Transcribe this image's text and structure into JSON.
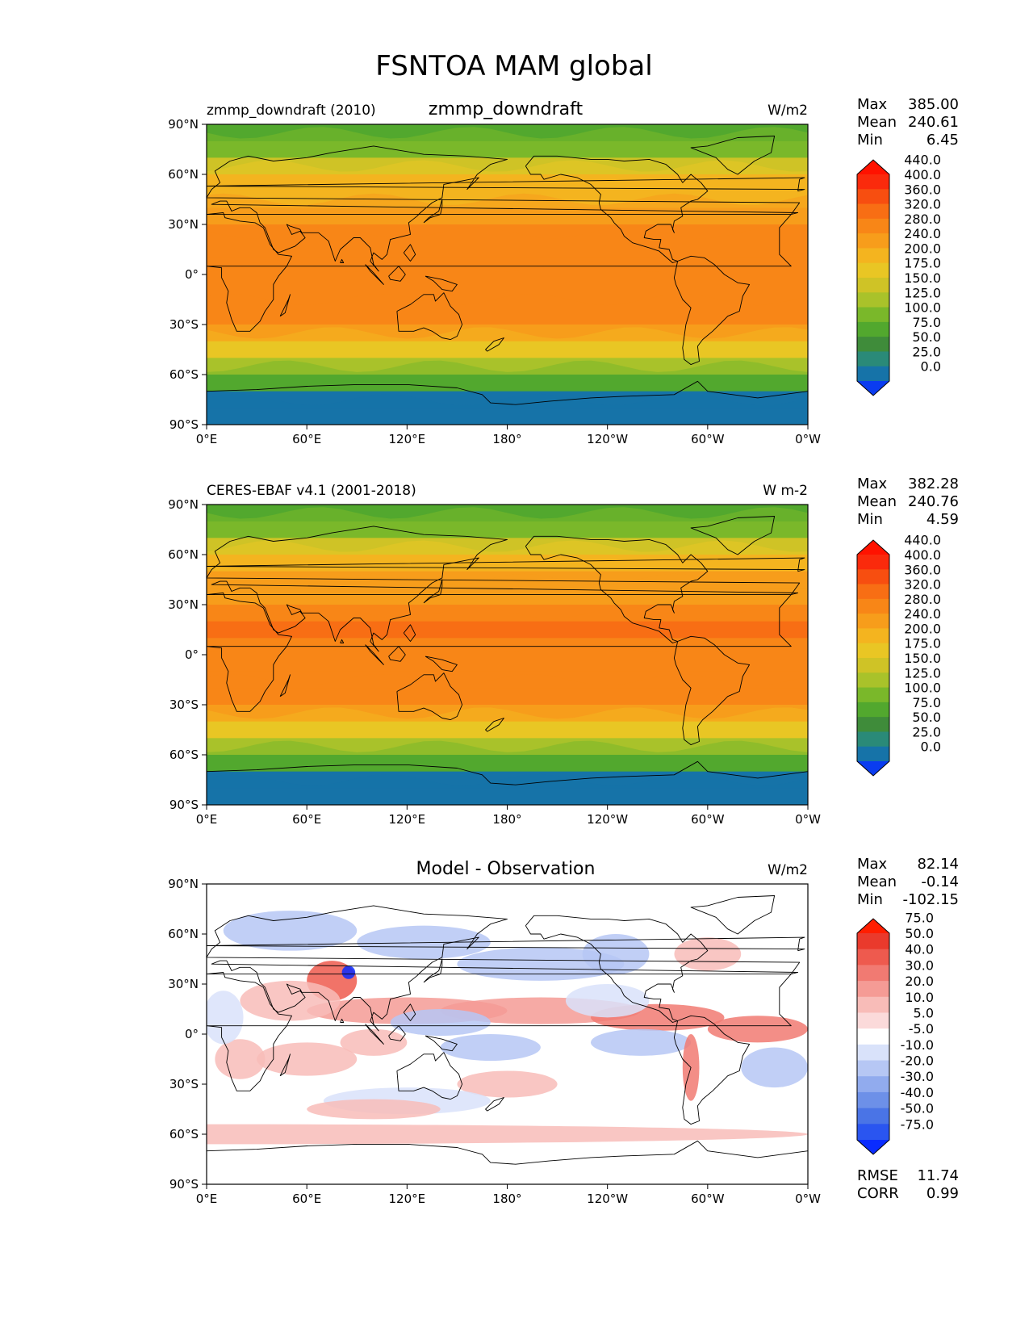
{
  "figure_title": "FSNTOA MAM global",
  "chart_data": [
    {
      "type": "heatmap",
      "left_title": "zmmp_downdraft (2010)",
      "center_title": "zmmp_downdraft",
      "units": "W/m2",
      "stats": {
        "max": "385.00",
        "mean": "240.61",
        "min": "6.45"
      },
      "colorbar_levels": [
        "0.0",
        "25.0",
        "50.0",
        "75.0",
        "100.0",
        "125.0",
        "150.0",
        "175.0",
        "200.0",
        "240.0",
        "280.0",
        "320.0",
        "360.0",
        "400.0",
        "440.0"
      ],
      "colorbar_colors": [
        "#0a3cf0",
        "#1673a8",
        "#2a8a78",
        "#3f8c3a",
        "#52a82e",
        "#7ab82a",
        "#a9c22a",
        "#cfc326",
        "#e9c624",
        "#f4b41f",
        "#f79d1b",
        "#f88617",
        "#f86e14",
        "#f74e10",
        "#fa2a0c",
        "#ff1200"
      ],
      "xticks": [
        "0°E",
        "60°E",
        "120°E",
        "180°",
        "120°W",
        "60°W",
        "0°W"
      ],
      "yticks": [
        "90°N",
        "60°N",
        "30°N",
        "0°",
        "30°S",
        "60°S",
        "90°S"
      ],
      "xlim": [
        0,
        360
      ],
      "ylim": [
        -90,
        90
      ],
      "zonal_profile": [
        {
          "lat": 85,
          "value": 90
        },
        {
          "lat": 75,
          "value": 120
        },
        {
          "lat": 65,
          "value": 165
        },
        {
          "lat": 55,
          "value": 200
        },
        {
          "lat": 45,
          "value": 235
        },
        {
          "lat": 35,
          "value": 270
        },
        {
          "lat": 25,
          "value": 295
        },
        {
          "lat": 15,
          "value": 310
        },
        {
          "lat": 5,
          "value": 305
        },
        {
          "lat": -5,
          "value": 315
        },
        {
          "lat": -15,
          "value": 310
        },
        {
          "lat": -25,
          "value": 285
        },
        {
          "lat": -35,
          "value": 240
        },
        {
          "lat": -45,
          "value": 185
        },
        {
          "lat": -55,
          "value": 140
        },
        {
          "lat": -65,
          "value": 95
        },
        {
          "lat": -75,
          "value": 10
        },
        {
          "lat": -85,
          "value": 6
        }
      ]
    },
    {
      "type": "heatmap",
      "left_title": "CERES-EBAF v4.1 (2001-2018)",
      "center_title": "",
      "units": "W m-2",
      "stats": {
        "max": "382.28",
        "mean": "240.76",
        "min": "4.59"
      },
      "colorbar_levels": [
        "0.0",
        "25.0",
        "50.0",
        "75.0",
        "100.0",
        "125.0",
        "150.0",
        "175.0",
        "200.0",
        "240.0",
        "280.0",
        "320.0",
        "360.0",
        "400.0",
        "440.0"
      ],
      "colorbar_colors": [
        "#0a3cf0",
        "#1673a8",
        "#2a8a78",
        "#3f8c3a",
        "#52a82e",
        "#7ab82a",
        "#a9c22a",
        "#cfc326",
        "#e9c624",
        "#f4b41f",
        "#f79d1b",
        "#f88617",
        "#f86e14",
        "#f74e10",
        "#fa2a0c",
        "#ff1200"
      ],
      "xticks": [
        "0°E",
        "60°E",
        "120°E",
        "180°",
        "120°W",
        "60°W",
        "0°W"
      ],
      "yticks": [
        "90°N",
        "60°N",
        "30°N",
        "0°",
        "30°S",
        "60°S",
        "90°S"
      ],
      "xlim": [
        0,
        360
      ],
      "ylim": [
        -90,
        90
      ],
      "zonal_profile": [
        {
          "lat": 85,
          "value": 90
        },
        {
          "lat": 75,
          "value": 120
        },
        {
          "lat": 65,
          "value": 170
        },
        {
          "lat": 55,
          "value": 205
        },
        {
          "lat": 45,
          "value": 240
        },
        {
          "lat": 35,
          "value": 275
        },
        {
          "lat": 25,
          "value": 300
        },
        {
          "lat": 15,
          "value": 320
        },
        {
          "lat": 5,
          "value": 300
        },
        {
          "lat": -5,
          "value": 310
        },
        {
          "lat": -15,
          "value": 305
        },
        {
          "lat": -25,
          "value": 285
        },
        {
          "lat": -35,
          "value": 245
        },
        {
          "lat": -45,
          "value": 190
        },
        {
          "lat": -55,
          "value": 140
        },
        {
          "lat": -65,
          "value": 90
        },
        {
          "lat": -75,
          "value": 8
        },
        {
          "lat": -85,
          "value": 5
        }
      ]
    },
    {
      "type": "heatmap",
      "left_title": "",
      "center_title": "Model - Observation",
      "units": "W/m2",
      "stats": {
        "max": "82.14",
        "mean": "-0.14",
        "min": "-102.15"
      },
      "rmse": "11.74",
      "corr": "0.99",
      "colorbar_levels": [
        "-75.0",
        "-50.0",
        "-40.0",
        "-30.0",
        "-20.0",
        "-10.0",
        "-5.0",
        "5.0",
        "10.0",
        "20.0",
        "30.0",
        "40.0",
        "50.0",
        "75.0"
      ],
      "colorbar_colors": [
        "#0a2cff",
        "#2a55f0",
        "#4a74e6",
        "#6d90e8",
        "#91abee",
        "#b6c7f4",
        "#d9e2fa",
        "#ffffff",
        "#fbdada",
        "#f8bcb8",
        "#f59b95",
        "#f17a72",
        "#ee5a4e",
        "#ea3a2c",
        "#ff1e00"
      ],
      "xticks": [
        "0°E",
        "60°E",
        "120°E",
        "180°",
        "120°W",
        "60°W",
        "0°W"
      ],
      "yticks": [
        "90°N",
        "60°N",
        "30°N",
        "0°",
        "30°S",
        "60°S",
        "90°S"
      ],
      "xlim": [
        0,
        360
      ],
      "ylim": [
        -90,
        90
      ]
    }
  ]
}
